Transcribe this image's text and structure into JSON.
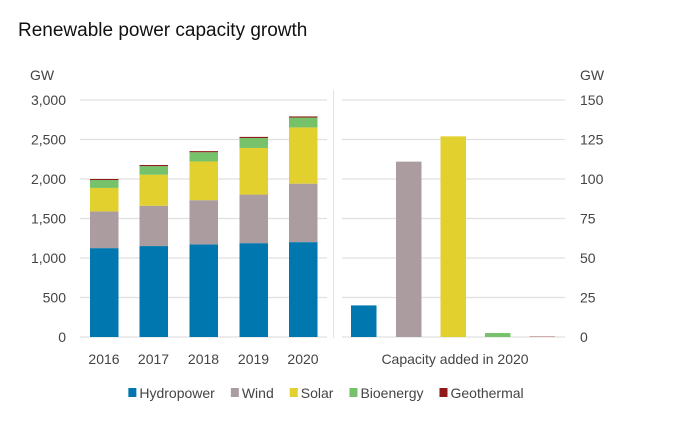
{
  "chart_data": [
    {
      "type": "bar",
      "stacked": true,
      "title": "Renewable power capacity growth",
      "ylabel": "GW",
      "ylim": [
        0,
        3000
      ],
      "yticks": [
        "0",
        "500",
        "1,000",
        "1,500",
        "2,000",
        "2,500",
        "3,000"
      ],
      "ytick_values": [
        0,
        500,
        1000,
        1500,
        2000,
        2500,
        3000
      ],
      "categories": [
        "2016",
        "2017",
        "2018",
        "2019",
        "2020"
      ],
      "grid": true,
      "series": [
        {
          "name": "Hydropower",
          "color": "#0077ae",
          "values": [
            1125,
            1151,
            1172,
            1188,
            1201
          ]
        },
        {
          "name": "Wind",
          "color": "#ab9d9f",
          "values": [
            465,
            510,
            560,
            615,
            740
          ]
        },
        {
          "name": "Solar",
          "color": "#e2d02f",
          "values": [
            297,
            393,
            490,
            590,
            712
          ]
        },
        {
          "name": "Bioenergy",
          "color": "#76c26a",
          "values": [
            100,
            109,
            117,
            126,
            125
          ]
        },
        {
          "name": "Geothermal",
          "color": "#8e1a1a",
          "values": [
            13,
            14,
            14,
            14,
            14
          ]
        }
      ]
    },
    {
      "type": "bar",
      "xlabel": "Capacity added in 2020",
      "ylabel": "GW",
      "ylim": [
        0,
        150
      ],
      "yticks": [
        "0",
        "25",
        "50",
        "75",
        "100",
        "125",
        "150"
      ],
      "ytick_values": [
        0,
        25,
        50,
        75,
        100,
        125,
        150
      ],
      "categories": [
        "Hydropower",
        "Wind",
        "Solar",
        "Bioenergy",
        "Geothermal"
      ],
      "grid": true,
      "values": [
        20,
        111,
        127,
        2.5,
        0.2
      ],
      "colors": [
        "#0077ae",
        "#ab9d9f",
        "#e2d02f",
        "#76c26a",
        "#8e1a1a"
      ]
    }
  ],
  "legend": {
    "placement": "bottom",
    "items": [
      "Hydropower",
      "Wind",
      "Solar",
      "Bioenergy",
      "Geothermal"
    ]
  }
}
